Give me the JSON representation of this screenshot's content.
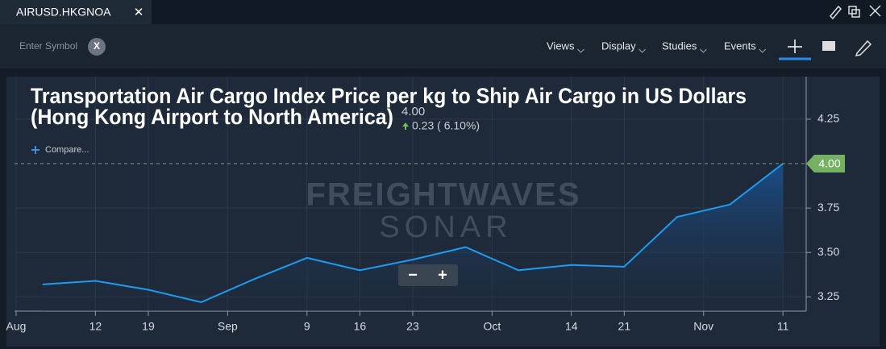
{
  "tab": {
    "title": "AIRUSD.HKGNOA",
    "close": "✕"
  },
  "toolbar": {
    "symbol_placeholder": "Enter Symbol",
    "clear": "X",
    "menus": [
      "Views",
      "Display",
      "Studies",
      "Events"
    ]
  },
  "quote": {
    "last": "4.00",
    "change": "0.23 ( 6.10%)",
    "compare": "Compare...",
    "price_tag": "4.00"
  },
  "watermark": {
    "brand": "FREIGHTWAVES",
    "product": "SONAR"
  },
  "zoom": {
    "out": "−",
    "in": "+"
  },
  "chart_data": {
    "type": "line",
    "title": [
      "Transportation Air Cargo Index Price per kg to Ship Air Cargo in US Dollars",
      "(Hong Kong Airport to North America)"
    ],
    "x": [
      0,
      1,
      2,
      3,
      4,
      5,
      6,
      7,
      8,
      9,
      10,
      11,
      12,
      13,
      14
    ],
    "series": [
      {
        "name": "AIRUSD.HKGNOA",
        "color": "#1e9bf0",
        "values": [
          3.32,
          3.34,
          3.29,
          3.22,
          3.35,
          3.47,
          3.4,
          3.46,
          3.53,
          3.4,
          3.43,
          3.42,
          3.7,
          3.77,
          4.0
        ]
      }
    ],
    "xlim": [
      -0.53,
      14.44
    ],
    "xticks": [
      {
        "value": -0.5,
        "label": "Aug"
      },
      {
        "value": 1,
        "label": "12"
      },
      {
        "value": 2,
        "label": "19"
      },
      {
        "value": 3.5,
        "label": "Sep"
      },
      {
        "value": 5,
        "label": "9"
      },
      {
        "value": 6,
        "label": "16"
      },
      {
        "value": 7,
        "label": "23"
      },
      {
        "value": 8.5,
        "label": "Oct"
      },
      {
        "value": 10,
        "label": "14"
      },
      {
        "value": 11,
        "label": "21"
      },
      {
        "value": 12.5,
        "label": "Nov"
      },
      {
        "value": 14,
        "label": "11"
      }
    ],
    "ylim": [
      3.17,
      4.49
    ],
    "yticks": [
      3.25,
      {
        "value": 3.5,
        "label": "3.50"
      },
      3.75,
      4.25
    ],
    "grid": true
  }
}
